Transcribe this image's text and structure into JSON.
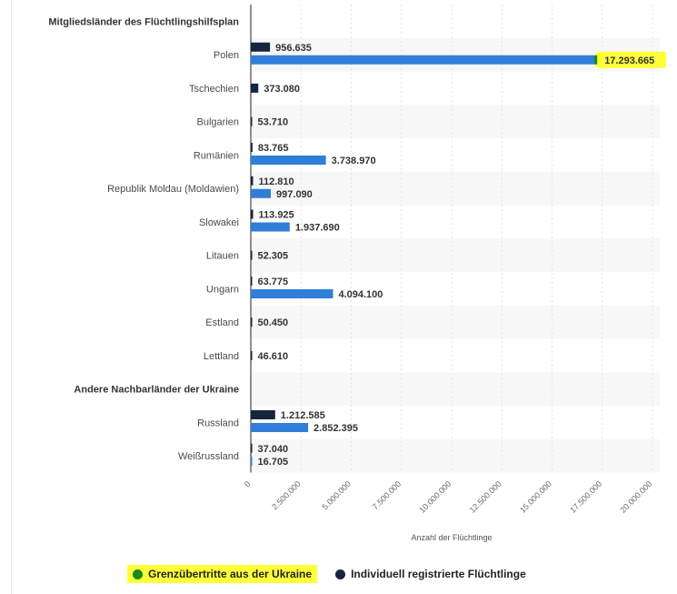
{
  "chart_data": {
    "type": "bar",
    "orientation": "horizontal",
    "xlabel": "Anzahl der Flüchtlinge",
    "xlim": [
      0,
      20000000
    ],
    "ticks": [
      "0",
      "2.500.000",
      "5.000.000",
      "7.500.000",
      "10.000.000",
      "12.500.000",
      "15.000.000",
      "17.500.000",
      "20.000.000"
    ],
    "grid": true,
    "legend_position": "bottom",
    "rows": [
      {
        "kind": "group",
        "label": "Mitgliedsländer des Flüchtlingshilfsplan"
      },
      {
        "kind": "category",
        "label": "Polen",
        "registered": 956635,
        "registered_label": "956.635",
        "crossings": 17293665,
        "crossings_label": "17.293.665",
        "highlight_crossings": true
      },
      {
        "kind": "category",
        "label": "Tschechien",
        "registered": 373080,
        "registered_label": "373.080"
      },
      {
        "kind": "category",
        "label": "Bulgarien",
        "registered": 53710,
        "registered_label": "53.710"
      },
      {
        "kind": "category",
        "label": "Rumänien",
        "registered": 83765,
        "registered_label": "83.765",
        "crossings": 3738970,
        "crossings_label": "3.738.970"
      },
      {
        "kind": "category",
        "label": "Republik Moldau (Moldawien)",
        "registered": 112810,
        "registered_label": "112.810",
        "crossings": 997090,
        "crossings_label": "997.090"
      },
      {
        "kind": "category",
        "label": "Slowakei",
        "registered": 113925,
        "registered_label": "113.925",
        "crossings": 1937690,
        "crossings_label": "1.937.690"
      },
      {
        "kind": "category",
        "label": "Litauen",
        "registered": 52305,
        "registered_label": "52.305"
      },
      {
        "kind": "category",
        "label": "Ungarn",
        "registered": 63775,
        "registered_label": "63.775",
        "crossings": 4094100,
        "crossings_label": "4.094.100"
      },
      {
        "kind": "category",
        "label": "Estland",
        "registered": 50450,
        "registered_label": "50.450"
      },
      {
        "kind": "category",
        "label": "Lettland",
        "registered": 46610,
        "registered_label": "46.610"
      },
      {
        "kind": "group",
        "label": "Andere Nachbarländer der Ukraine"
      },
      {
        "kind": "category",
        "label": "Russland",
        "registered": 1212585,
        "registered_label": "1.212.585",
        "crossings": 2852395,
        "crossings_label": "2.852.395"
      },
      {
        "kind": "category",
        "label": "Weißrussland",
        "registered": 37040,
        "registered_label": "37.040",
        "crossings": 16705,
        "crossings_label": "16.705"
      }
    ],
    "series": [
      {
        "name": "Grenzübertritte aus der Ukraine",
        "key": "crossings",
        "color": "#2f7ed8",
        "marker_color": "#1a8a1a"
      },
      {
        "name": "Individuell registrierte Flüchtlinge",
        "key": "registered",
        "color": "#15253f"
      }
    ]
  }
}
